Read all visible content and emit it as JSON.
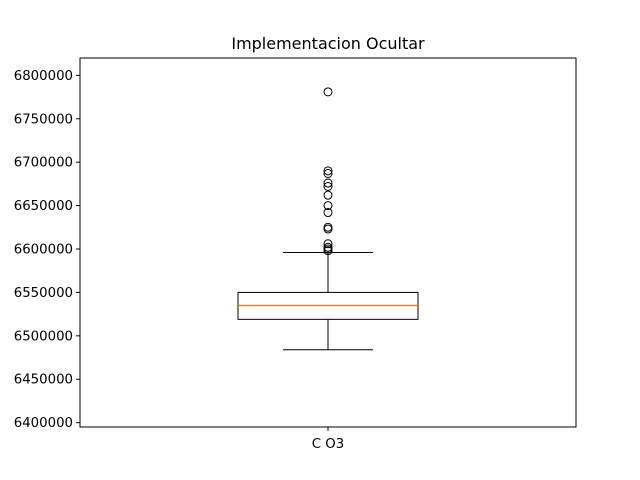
{
  "chart_data": {
    "type": "box",
    "title": "Implementacion Ocultar",
    "xlabel": "",
    "ylabel": "",
    "categories": [
      "C O3"
    ],
    "ylim": [
      6395000,
      6820000
    ],
    "yticks": [
      6400000,
      6450000,
      6500000,
      6550000,
      6600000,
      6650000,
      6700000,
      6750000,
      6800000
    ],
    "ytick_labels": [
      "6400000",
      "6450000",
      "6500000",
      "6550000",
      "6600000",
      "6650000",
      "6700000",
      "6750000",
      "6800000"
    ],
    "grid": false,
    "box": {
      "whisker_low": 6484000,
      "q1": 6519000,
      "median": 6535000,
      "q3": 6550000,
      "whisker_high": 6596000
    },
    "outliers": [
      6598000,
      6600000,
      6602000,
      6606000,
      6623000,
      6625000,
      6642000,
      6650000,
      6662000,
      6672000,
      6676000,
      6687000,
      6690000,
      6781000
    ],
    "colors": {
      "box": "#000000",
      "median": "#ff7f0e",
      "outlier_edge": "#000000"
    }
  }
}
